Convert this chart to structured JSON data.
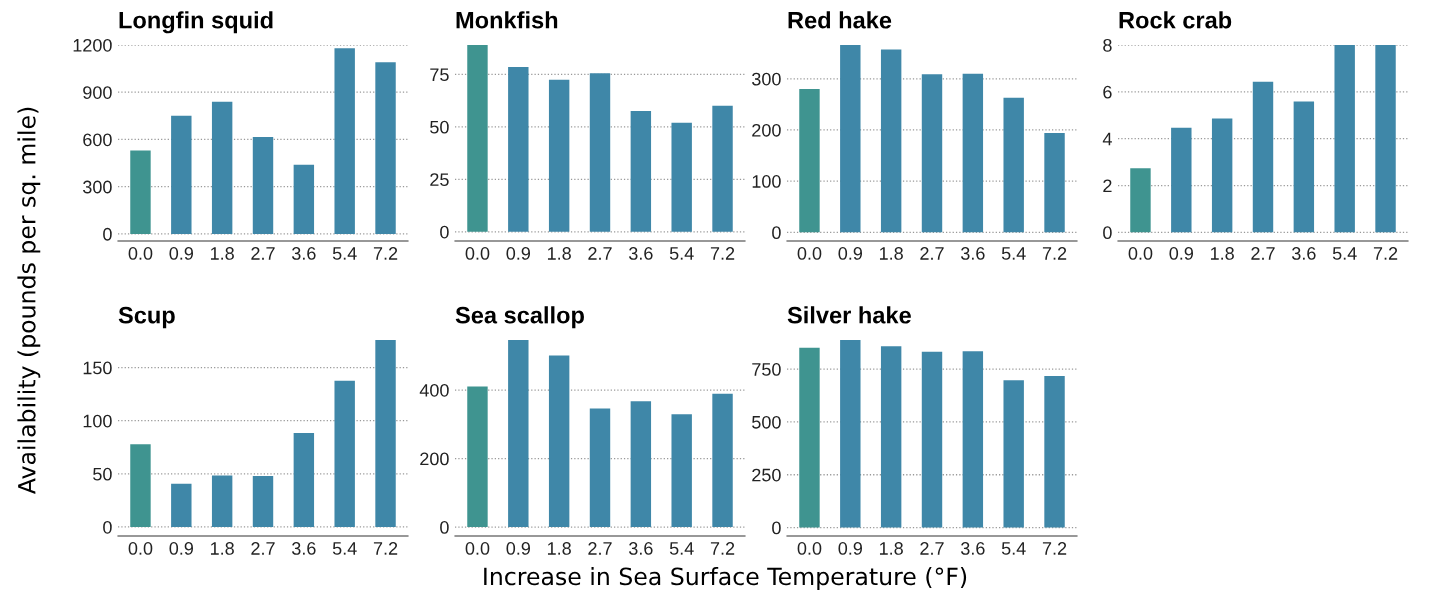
{
  "chart_data": [
    {
      "type": "bar",
      "title": "Longfin squid",
      "xlabel": "Increase in Sea Surface Temperature (°F)",
      "ylabel": "Availability (pounds per sq. mile)",
      "categories": [
        "0.0",
        "0.9",
        "1.8",
        "2.7",
        "3.6",
        "5.4",
        "7.2"
      ],
      "values": [
        530,
        750,
        840,
        615,
        440,
        1180,
        1090
      ],
      "colors": [
        "#3f9490",
        "#3f87a8",
        "#3f87a8",
        "#3f87a8",
        "#3f87a8",
        "#3f87a8",
        "#3f87a8"
      ],
      "ylim": [
        -45,
        1200
      ],
      "yticks": [
        0,
        300,
        600,
        900,
        1200
      ],
      "grid": "y"
    },
    {
      "type": "bar",
      "title": "Monkfish",
      "categories": [
        "0.0",
        "0.9",
        "1.8",
        "2.7",
        "3.6",
        "5.4",
        "7.2"
      ],
      "values": [
        89,
        78.5,
        72.5,
        75.5,
        57.5,
        52,
        60
      ],
      "colors": [
        "#3f9490",
        "#3f87a8",
        "#3f87a8",
        "#3f87a8",
        "#3f87a8",
        "#3f87a8",
        "#3f87a8"
      ],
      "ylim": [
        -4.4,
        89
      ],
      "yticks": [
        0,
        25,
        50,
        75
      ],
      "grid": "y"
    },
    {
      "type": "bar",
      "title": "Red hake",
      "categories": [
        "0.0",
        "0.9",
        "1.8",
        "2.7",
        "3.6",
        "5.4",
        "7.2"
      ],
      "values": [
        280,
        366,
        357,
        309,
        310,
        263,
        194
      ],
      "colors": [
        "#3f9490",
        "#3f87a8",
        "#3f87a8",
        "#3f87a8",
        "#3f87a8",
        "#3f87a8",
        "#3f87a8"
      ],
      "ylim": [
        -17,
        366
      ],
      "yticks": [
        0,
        100,
        200,
        300
      ],
      "grid": "y"
    },
    {
      "type": "bar",
      "title": "Rock crab",
      "categories": [
        "0.0",
        "0.9",
        "1.8",
        "2.7",
        "3.6",
        "5.4",
        "7.2"
      ],
      "values": [
        2.74,
        4.47,
        4.86,
        6.43,
        5.59,
        8.0,
        8.0
      ],
      "colors": [
        "#3f9490",
        "#3f87a8",
        "#3f87a8",
        "#3f87a8",
        "#3f87a8",
        "#3f87a8",
        "#3f87a8"
      ],
      "ylim": [
        -0.37,
        8
      ],
      "yticks": [
        0,
        2,
        4,
        6,
        8
      ],
      "grid": "y"
    },
    {
      "type": "bar",
      "title": "Scup",
      "categories": [
        "0.0",
        "0.9",
        "1.8",
        "2.7",
        "3.6",
        "5.4",
        "7.2"
      ],
      "values": [
        77.8,
        40.8,
        48.4,
        48,
        88.4,
        137.7,
        176
      ],
      "colors": [
        "#3f9490",
        "#3f87a8",
        "#3f87a8",
        "#3f87a8",
        "#3f87a8",
        "#3f87a8",
        "#3f87a8"
      ],
      "ylim": [
        -8.5,
        176
      ],
      "yticks": [
        0,
        50,
        100,
        150
      ],
      "grid": "y"
    },
    {
      "type": "bar",
      "title": "Sea scallop",
      "categories": [
        "0.0",
        "0.9",
        "1.8",
        "2.7",
        "3.6",
        "5.4",
        "7.2"
      ],
      "values": [
        410,
        546,
        501,
        346,
        367,
        329,
        389
      ],
      "colors": [
        "#3f9490",
        "#3f87a8",
        "#3f87a8",
        "#3f87a8",
        "#3f87a8",
        "#3f87a8",
        "#3f87a8"
      ],
      "ylim": [
        -26,
        546
      ],
      "yticks": [
        0,
        200,
        400
      ],
      "grid": "y"
    },
    {
      "type": "bar",
      "title": "Silver hake",
      "categories": [
        "0.0",
        "0.9",
        "1.8",
        "2.7",
        "3.6",
        "5.4",
        "7.2"
      ],
      "values": [
        851,
        888,
        859,
        832,
        835,
        697,
        718
      ],
      "colors": [
        "#3f9490",
        "#3f87a8",
        "#3f87a8",
        "#3f87a8",
        "#3f87a8",
        "#3f87a8",
        "#3f87a8"
      ],
      "ylim": [
        -40,
        888
      ],
      "yticks": [
        0,
        250,
        500,
        750
      ],
      "grid": "y"
    }
  ]
}
